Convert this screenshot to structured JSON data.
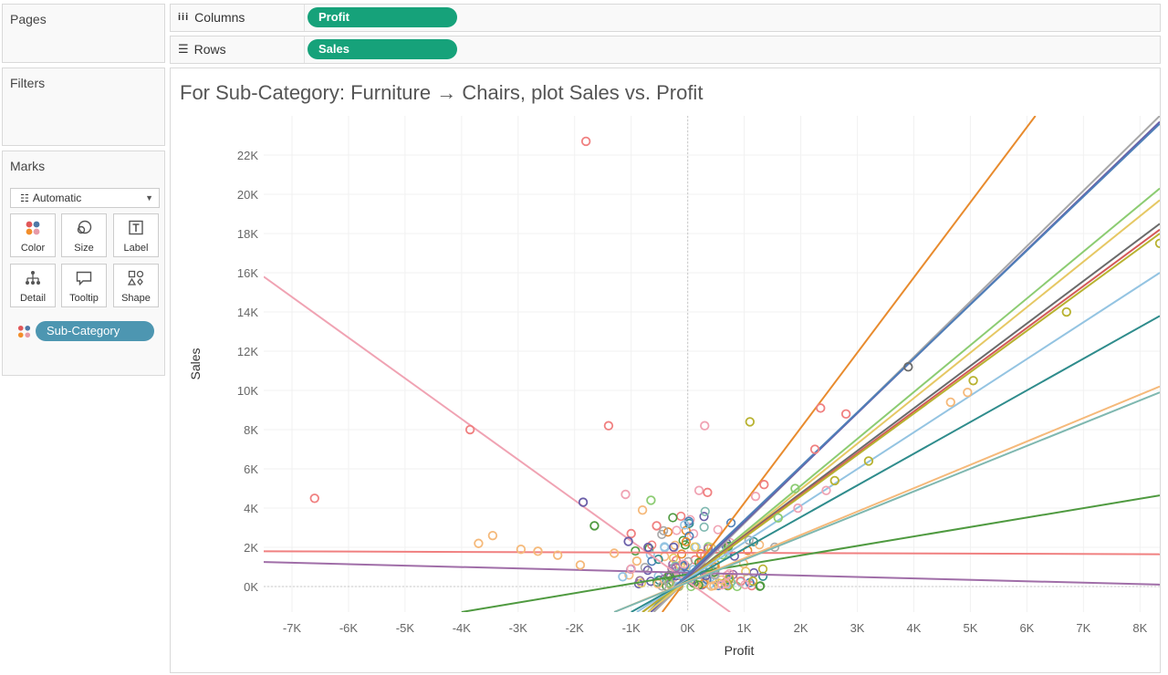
{
  "pages": {
    "title": "Pages"
  },
  "filters": {
    "title": "Filters"
  },
  "marks": {
    "title": "Marks",
    "mark_type": "Automatic",
    "buttons": [
      {
        "label": "Color",
        "icon": "color-icon"
      },
      {
        "label": "Size",
        "icon": "size-icon"
      },
      {
        "label": "Label",
        "icon": "label-icon"
      },
      {
        "label": "Detail",
        "icon": "detail-icon"
      },
      {
        "label": "Tooltip",
        "icon": "tooltip-icon"
      },
      {
        "label": "Shape",
        "icon": "shape-icon"
      }
    ],
    "color_field": "Sub-Category"
  },
  "shelves": {
    "columns": {
      "label": "Columns",
      "pill": "Profit"
    },
    "rows": {
      "label": "Rows",
      "pill": "Sales"
    }
  },
  "colors": {
    "accent": "#16a27a",
    "subcat_pill": "#4d96b1"
  },
  "chart_data": {
    "type": "scatter",
    "title": "For Sub-Category: Furniture → Chairs, plot Sales vs. Profit",
    "xlabel": "Profit",
    "ylabel": "Sales",
    "xlim": [
      -7500,
      8350
    ],
    "ylim": [
      -1300,
      24000
    ],
    "x_ticks": [
      {
        "v": -7000,
        "label": "-7K"
      },
      {
        "v": -6000,
        "label": "-6K"
      },
      {
        "v": -5000,
        "label": "-5K"
      },
      {
        "v": -4000,
        "label": "-4K"
      },
      {
        "v": -3000,
        "label": "-3K"
      },
      {
        "v": -2000,
        "label": "-2K"
      },
      {
        "v": -1000,
        "label": "-1K"
      },
      {
        "v": 0,
        "label": "0K"
      },
      {
        "v": 1000,
        "label": "1K"
      },
      {
        "v": 2000,
        "label": "2K"
      },
      {
        "v": 3000,
        "label": "3K"
      },
      {
        "v": 4000,
        "label": "4K"
      },
      {
        "v": 5000,
        "label": "5K"
      },
      {
        "v": 6000,
        "label": "6K"
      },
      {
        "v": 7000,
        "label": "7K"
      },
      {
        "v": 8000,
        "label": "8K"
      }
    ],
    "y_ticks": [
      {
        "v": 0,
        "label": "0K"
      },
      {
        "v": 2000,
        "label": "2K"
      },
      {
        "v": 4000,
        "label": "4K"
      },
      {
        "v": 6000,
        "label": "6K"
      },
      {
        "v": 8000,
        "label": "8K"
      },
      {
        "v": 10000,
        "label": "10K"
      },
      {
        "v": 12000,
        "label": "12K"
      },
      {
        "v": 14000,
        "label": "14K"
      },
      {
        "v": 16000,
        "label": "16K"
      },
      {
        "v": 18000,
        "label": "18K"
      },
      {
        "v": 20000,
        "label": "20K"
      },
      {
        "v": 22000,
        "label": "22K"
      }
    ],
    "grid": true,
    "trend_lines": [
      {
        "color": "#f0a3b3",
        "x1": -7500,
        "y1": 15800,
        "x2": 750,
        "y2": -1300
      },
      {
        "color": "#f08080",
        "x1": -7500,
        "y1": 1800,
        "x2": 8350,
        "y2": 1650
      },
      {
        "color": "#a06ea8",
        "x1": -7500,
        "y1": 1250,
        "x2": 8350,
        "y2": 100
      },
      {
        "color": "#4f9a40",
        "x1": -4000,
        "y1": -1300,
        "x2": 8350,
        "y2": 4650
      },
      {
        "color": "#e88b2e",
        "x1": -450,
        "y1": -1300,
        "x2": 6150,
        "y2": 24000
      },
      {
        "color": "#a8a8a8",
        "x1": -600,
        "y1": -1300,
        "x2": 8350,
        "y2": 24000
      },
      {
        "color": "#6a5ea8",
        "x1": -650,
        "y1": -1300,
        "x2": 8350,
        "y2": 23700
      },
      {
        "color": "#4e7fb8",
        "x1": -700,
        "y1": -1300,
        "x2": 8350,
        "y2": 23600
      },
      {
        "color": "#8ccc72",
        "x1": -700,
        "y1": -1300,
        "x2": 8350,
        "y2": 20300
      },
      {
        "color": "#e6c864",
        "x1": -700,
        "y1": -1300,
        "x2": 8350,
        "y2": 19700
      },
      {
        "color": "#6b6b6b",
        "x1": -800,
        "y1": -1300,
        "x2": 8350,
        "y2": 18500
      },
      {
        "color": "#d45a5a",
        "x1": -800,
        "y1": -1300,
        "x2": 8350,
        "y2": 18200
      },
      {
        "color": "#b8b230",
        "x1": -800,
        "y1": -1300,
        "x2": 8350,
        "y2": 18000
      },
      {
        "color": "#94c4e2",
        "x1": -900,
        "y1": -1300,
        "x2": 8350,
        "y2": 16000
      },
      {
        "color": "#2f8c8c",
        "x1": -1000,
        "y1": -1300,
        "x2": 8350,
        "y2": 13800
      },
      {
        "color": "#f5b97a",
        "x1": -1300,
        "y1": -1300,
        "x2": 8350,
        "y2": 10200
      },
      {
        "color": "#7fb8b0",
        "x1": -1300,
        "y1": -1300,
        "x2": 8350,
        "y2": 9900
      }
    ],
    "outlier_points": [
      {
        "x": -1800,
        "y": 22700,
        "c": "#f08080"
      },
      {
        "x": -6600,
        "y": 4500,
        "c": "#f08080"
      },
      {
        "x": -3850,
        "y": 8000,
        "c": "#f08080"
      },
      {
        "x": -1400,
        "y": 8200,
        "c": "#f08080"
      },
      {
        "x": 300,
        "y": 8200,
        "c": "#f0a3b3"
      },
      {
        "x": 1100,
        "y": 8400,
        "c": "#b8b230"
      },
      {
        "x": 2350,
        "y": 9100,
        "c": "#f08080"
      },
      {
        "x": 2800,
        "y": 8800,
        "c": "#f08080"
      },
      {
        "x": 3900,
        "y": 11200,
        "c": "#6b6b6b"
      },
      {
        "x": 6700,
        "y": 14000,
        "c": "#b8b230"
      },
      {
        "x": 8350,
        "y": 17500,
        "c": "#b8b230"
      },
      {
        "x": 5050,
        "y": 10500,
        "c": "#b8b230"
      },
      {
        "x": 4650,
        "y": 9400,
        "c": "#f5b97a"
      },
      {
        "x": 4950,
        "y": 9900,
        "c": "#f5b97a"
      },
      {
        "x": 3200,
        "y": 6400,
        "c": "#b8b230"
      },
      {
        "x": 2250,
        "y": 7000,
        "c": "#f08080"
      },
      {
        "x": -1850,
        "y": 4300,
        "c": "#6a5ea8"
      },
      {
        "x": -1650,
        "y": 3100,
        "c": "#4f9a40"
      },
      {
        "x": -3450,
        "y": 2600,
        "c": "#f5b97a"
      },
      {
        "x": -3700,
        "y": 2200,
        "c": "#f5b97a"
      },
      {
        "x": -2950,
        "y": 1900,
        "c": "#f5b97a"
      },
      {
        "x": -2650,
        "y": 1800,
        "c": "#f5b97a"
      },
      {
        "x": -2300,
        "y": 1600,
        "c": "#f5b97a"
      },
      {
        "x": -1900,
        "y": 1100,
        "c": "#f5b97a"
      },
      {
        "x": -1100,
        "y": 4700,
        "c": "#f0a3b3"
      },
      {
        "x": -650,
        "y": 4400,
        "c": "#8ccc72"
      },
      {
        "x": -550,
        "y": 3100,
        "c": "#f08080"
      },
      {
        "x": 200,
        "y": 4900,
        "c": "#f0a3b3"
      },
      {
        "x": 350,
        "y": 4800,
        "c": "#f08080"
      },
      {
        "x": 1350,
        "y": 5200,
        "c": "#f08080"
      },
      {
        "x": 1200,
        "y": 4600,
        "c": "#f0a3b3"
      },
      {
        "x": 1900,
        "y": 5000,
        "c": "#8ccc72"
      },
      {
        "x": 2600,
        "y": 5400,
        "c": "#b8b230"
      },
      {
        "x": 2450,
        "y": 4900,
        "c": "#f0a3b3"
      },
      {
        "x": 1600,
        "y": 3500,
        "c": "#8ccc72"
      },
      {
        "x": 1950,
        "y": 4000,
        "c": "#f0a3b3"
      },
      {
        "x": -1300,
        "y": 1700,
        "c": "#f5b97a"
      },
      {
        "x": -1000,
        "y": 2700,
        "c": "#f08080"
      },
      {
        "x": -1050,
        "y": 2300,
        "c": "#6a5ea8"
      },
      {
        "x": -900,
        "y": 1300,
        "c": "#f5b97a"
      },
      {
        "x": -1150,
        "y": 500,
        "c": "#94c4e2"
      },
      {
        "x": -1000,
        "y": 900,
        "c": "#f0a3b3"
      },
      {
        "x": -800,
        "y": 3900,
        "c": "#f5b97a"
      },
      {
        "x": -700,
        "y": 2000,
        "c": "#6a5ea8"
      }
    ],
    "cluster": {
      "count": 170,
      "x_range": [
        -1200,
        1600
      ],
      "y_range": [
        0,
        4300
      ],
      "colors": [
        "#f08080",
        "#f0a3b3",
        "#4f9a40",
        "#8ccc72",
        "#e6c864",
        "#b8b230",
        "#6a5ea8",
        "#4e7fb8",
        "#94c4e2",
        "#2f8c8c",
        "#f5b97a",
        "#e88b2e",
        "#a06ea8",
        "#a8a8a8",
        "#7fb8b0"
      ]
    }
  }
}
